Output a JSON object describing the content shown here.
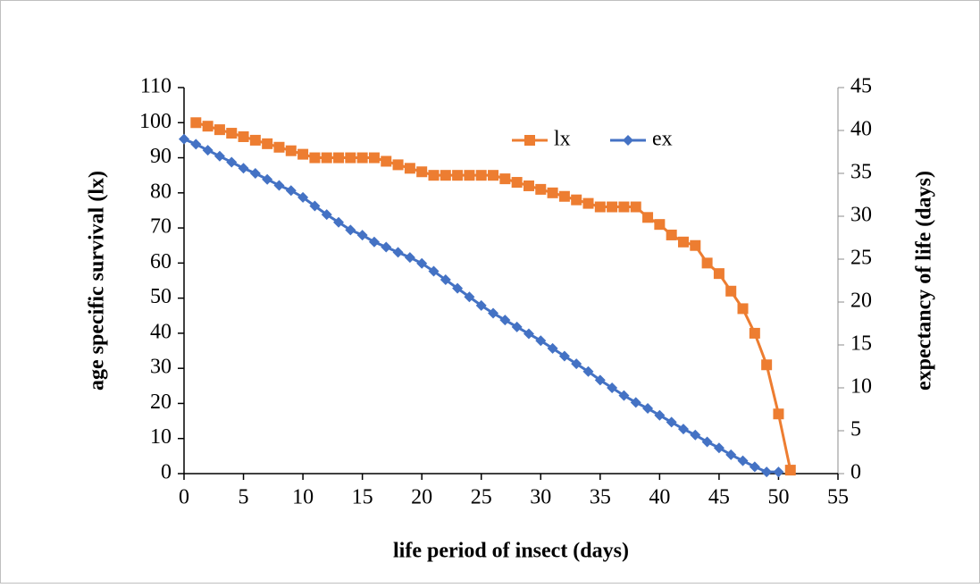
{
  "chart_data": {
    "type": "line",
    "x_label": "life period of insect (days)",
    "y_label": "age specific survival (lx)",
    "y2_label": "expectancy of life (days)",
    "x": [
      0,
      1,
      2,
      3,
      4,
      5,
      6,
      7,
      8,
      9,
      10,
      11,
      12,
      13,
      14,
      15,
      16,
      17,
      18,
      19,
      20,
      21,
      22,
      23,
      24,
      25,
      26,
      27,
      28,
      29,
      30,
      31,
      32,
      33,
      34,
      35,
      36,
      37,
      38,
      39,
      40,
      41,
      42,
      43,
      44,
      45,
      46,
      47,
      48,
      49,
      50,
      51
    ],
    "series": [
      {
        "name": "lx",
        "color": "#ed7d31",
        "marker": "square",
        "values": [
          null,
          100,
          99,
          98,
          97,
          96,
          95,
          94,
          93,
          92,
          91,
          90,
          90,
          90,
          90,
          90,
          90,
          89,
          88,
          87,
          86,
          85,
          85,
          85,
          85,
          85,
          85,
          84,
          83,
          82,
          81,
          80,
          79,
          78,
          77,
          76,
          76,
          76,
          76,
          73,
          71,
          68,
          66,
          65,
          60,
          57,
          52,
          47,
          40,
          31,
          17,
          1
        ]
      },
      {
        "name": "ex",
        "color": "#4472c4",
        "marker": "diamond",
        "axis": "y2",
        "values": [
          39,
          38.4,
          37.7,
          37,
          36.3,
          35.6,
          35,
          34.3,
          33.6,
          33,
          32.2,
          31.2,
          30.2,
          29.3,
          28.4,
          27.8,
          27,
          26.4,
          25.8,
          25.2,
          24.5,
          23.6,
          22.6,
          21.6,
          20.6,
          19.6,
          18.7,
          17.9,
          17.1,
          16.3,
          15.5,
          14.6,
          13.7,
          12.8,
          11.9,
          10.9,
          10,
          9.1,
          8.3,
          7.6,
          6.8,
          6,
          5.2,
          4.5,
          3.7,
          3,
          2.2,
          1.5,
          0.8,
          0.2,
          0.2,
          null
        ]
      }
    ],
    "xlim": [
      0,
      55
    ],
    "xticks": [
      0,
      5,
      10,
      15,
      20,
      25,
      30,
      35,
      40,
      45,
      50,
      55
    ],
    "ylim": [
      0,
      110
    ],
    "yticks": [
      0,
      10,
      20,
      30,
      40,
      50,
      60,
      70,
      80,
      90,
      100,
      110
    ],
    "y2lim": [
      0,
      45
    ],
    "y2ticks": [
      0,
      5,
      10,
      15,
      20,
      25,
      30,
      35,
      40,
      45
    ],
    "legend": "top-center"
  }
}
